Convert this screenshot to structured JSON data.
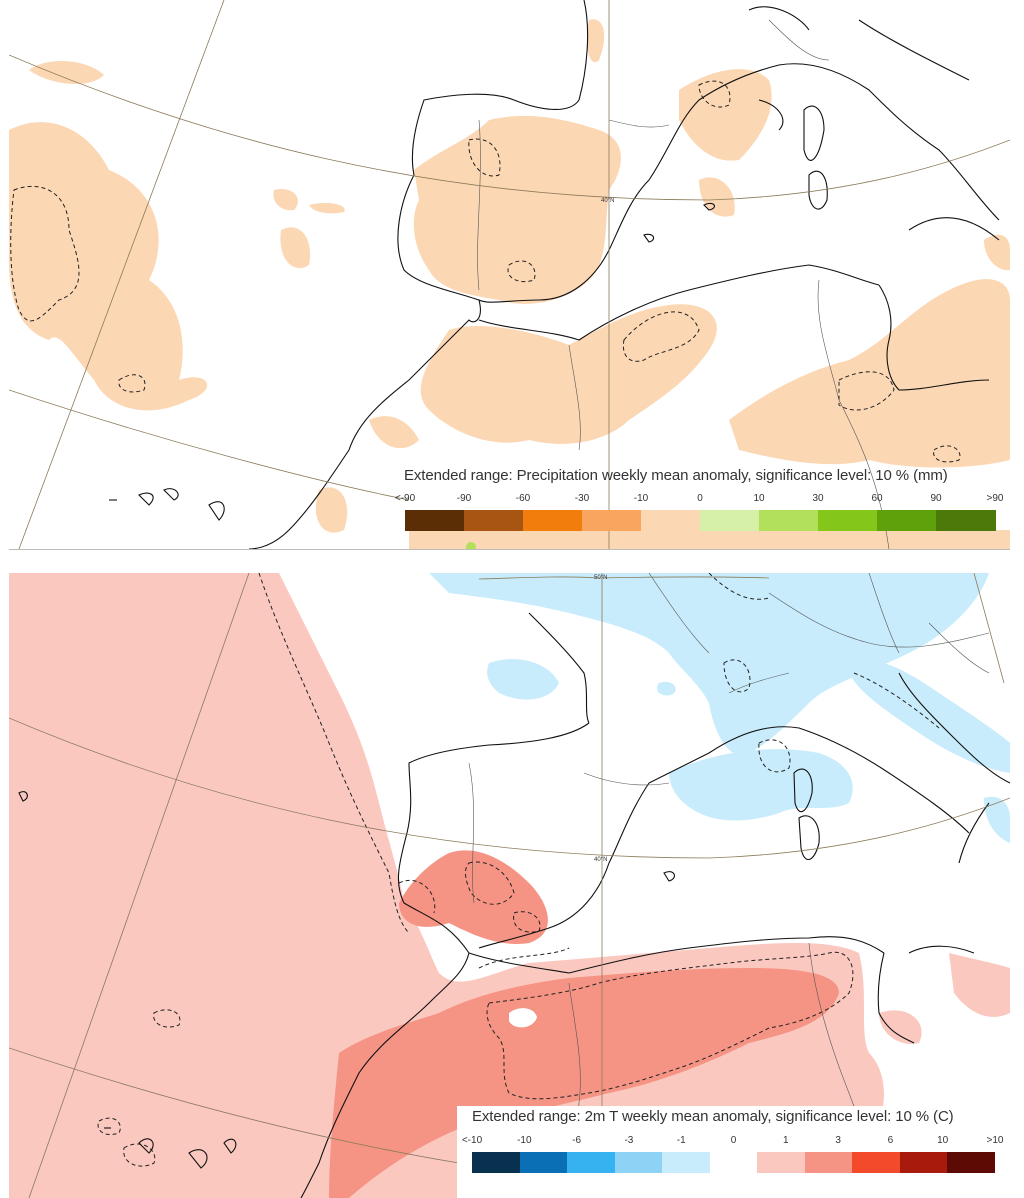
{
  "precip_panel": {
    "title": "Extended range: Precipitation weekly mean anomaly, significance level: 10 % (mm)",
    "lat_label": "40°N",
    "ticks": [
      "<-90",
      "-90",
      "-60",
      "-30",
      "-10",
      "0",
      "10",
      "30",
      "60",
      "90",
      ">90"
    ],
    "colors": [
      "#5c2e06",
      "#a85412",
      "#f07d0c",
      "#f9a55e",
      "#fcd7b4",
      "#d7f0a8",
      "#b2e05a",
      "#85c61a",
      "#5ea10a",
      "#4b7a0a"
    ]
  },
  "temp_panel": {
    "title": "Extended range: 2m T weekly mean anomaly, significance level: 10 % (C)",
    "lat_label_top": "50°N",
    "lat_label": "40°N",
    "ticks": [
      "<-10",
      "-10",
      "-6",
      "-3",
      "-1",
      "0",
      "1",
      "3",
      "6",
      "10",
      ">10"
    ],
    "colors": [
      "#08304f",
      "#0a6fb5",
      "#36b2f0",
      "#8ed3f5",
      "#c8ecfb",
      "#ffffff",
      "#fbc8c0",
      "#f59484",
      "#f24a2a",
      "#a81a0c",
      "#5e0a04"
    ]
  }
}
